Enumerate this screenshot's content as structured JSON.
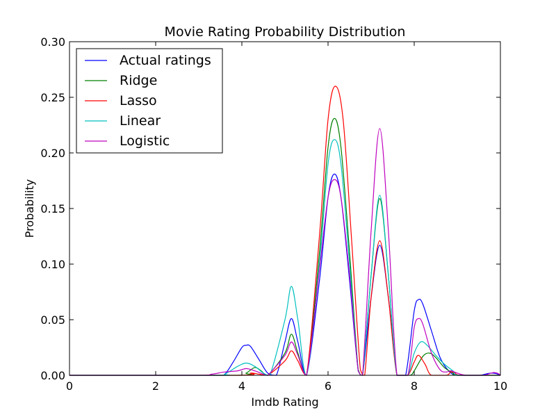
{
  "chart_data": {
    "type": "line",
    "title": "Movie Rating Probability Distribution",
    "xlabel": "Imdb Rating",
    "ylabel": "Probability",
    "xlim": [
      0,
      10
    ],
    "ylim": [
      0,
      0.3
    ],
    "x_ticks": [
      "0",
      "2",
      "4",
      "6",
      "8",
      "10"
    ],
    "y_ticks": [
      "0.00",
      "0.05",
      "0.10",
      "0.15",
      "0.20",
      "0.25",
      "0.30"
    ],
    "grid": false,
    "legend_position": "top-left",
    "series": [
      {
        "name": "Actual ratings",
        "color": "#0000ff",
        "points": [
          [
            0,
            0
          ],
          [
            3.4,
            0
          ],
          [
            3.6,
            0.001
          ],
          [
            3.8,
            0.012
          ],
          [
            4.0,
            0.025
          ],
          [
            4.1,
            0.027
          ],
          [
            4.2,
            0.026
          ],
          [
            4.4,
            0.014
          ],
          [
            4.6,
            0.002
          ],
          [
            4.8,
            0
          ],
          [
            5.0,
            0.03
          ],
          [
            5.15,
            0.051
          ],
          [
            5.3,
            0.03
          ],
          [
            5.5,
            0
          ],
          [
            5.8,
            0.085
          ],
          [
            6.0,
            0.16
          ],
          [
            6.15,
            0.181
          ],
          [
            6.3,
            0.16
          ],
          [
            6.5,
            0.085
          ],
          [
            6.7,
            0.004
          ],
          [
            6.8,
            0
          ],
          [
            7.0,
            0.07
          ],
          [
            7.2,
            0.117
          ],
          [
            7.4,
            0.07
          ],
          [
            7.6,
            0
          ],
          [
            7.8,
            0
          ],
          [
            8.0,
            0.058
          ],
          [
            8.1,
            0.068
          ],
          [
            8.2,
            0.064
          ],
          [
            8.4,
            0.04
          ],
          [
            8.6,
            0.016
          ],
          [
            8.8,
            0.004
          ],
          [
            9.0,
            0
          ],
          [
            9.5,
            0
          ],
          [
            9.7,
            0.0015
          ],
          [
            9.8,
            0.002
          ],
          [
            9.9,
            0.0015
          ],
          [
            10,
            0
          ]
        ]
      },
      {
        "name": "Ridge",
        "color": "#008000",
        "points": [
          [
            0,
            0
          ],
          [
            3.9,
            0
          ],
          [
            4.1,
            0.002
          ],
          [
            4.3,
            0.007
          ],
          [
            4.45,
            0.004
          ],
          [
            4.6,
            0
          ],
          [
            5.0,
            0.02
          ],
          [
            5.15,
            0.037
          ],
          [
            5.3,
            0.02
          ],
          [
            5.5,
            0
          ],
          [
            5.8,
            0.11
          ],
          [
            6.0,
            0.205
          ],
          [
            6.15,
            0.231
          ],
          [
            6.3,
            0.205
          ],
          [
            6.5,
            0.11
          ],
          [
            6.7,
            0.005
          ],
          [
            6.8,
            0
          ],
          [
            7.0,
            0.09
          ],
          [
            7.2,
            0.159
          ],
          [
            7.4,
            0.09
          ],
          [
            7.6,
            0
          ],
          [
            7.9,
            0
          ],
          [
            8.0,
            0.004
          ],
          [
            8.2,
            0.017
          ],
          [
            8.35,
            0.02
          ],
          [
            8.5,
            0.016
          ],
          [
            8.7,
            0.007
          ],
          [
            8.9,
            0.002
          ],
          [
            9.0,
            0
          ],
          [
            10,
            0
          ]
        ]
      },
      {
        "name": "Lasso",
        "color": "#ff0000",
        "points": [
          [
            0,
            0
          ],
          [
            3.9,
            0
          ],
          [
            4.2,
            0.002
          ],
          [
            4.4,
            0.001
          ],
          [
            4.6,
            0
          ],
          [
            5.0,
            0.013
          ],
          [
            5.15,
            0.022
          ],
          [
            5.3,
            0.013
          ],
          [
            5.5,
            0
          ],
          [
            5.8,
            0.125
          ],
          [
            6.0,
            0.23
          ],
          [
            6.17,
            0.26
          ],
          [
            6.35,
            0.23
          ],
          [
            6.55,
            0.12
          ],
          [
            6.75,
            0.005
          ],
          [
            6.85,
            0
          ],
          [
            7.0,
            0.07
          ],
          [
            7.2,
            0.121
          ],
          [
            7.4,
            0.07
          ],
          [
            7.6,
            0
          ],
          [
            7.85,
            0
          ],
          [
            8.0,
            0.012
          ],
          [
            8.1,
            0.018
          ],
          [
            8.25,
            0.01
          ],
          [
            8.4,
            0
          ],
          [
            8.75,
            0
          ],
          [
            8.85,
            0.003
          ],
          [
            8.95,
            0.002
          ],
          [
            9.1,
            0
          ],
          [
            10,
            0
          ]
        ]
      },
      {
        "name": "Linear",
        "color": "#00bfbf",
        "points": [
          [
            0,
            0
          ],
          [
            3.4,
            0
          ],
          [
            3.6,
            0.001
          ],
          [
            3.9,
            0.008
          ],
          [
            4.1,
            0.011
          ],
          [
            4.3,
            0.008
          ],
          [
            4.5,
            0.002
          ],
          [
            4.65,
            0
          ],
          [
            5.0,
            0.05
          ],
          [
            5.15,
            0.08
          ],
          [
            5.3,
            0.05
          ],
          [
            5.5,
            0
          ],
          [
            5.8,
            0.1
          ],
          [
            6.0,
            0.19
          ],
          [
            6.15,
            0.212
          ],
          [
            6.3,
            0.19
          ],
          [
            6.5,
            0.1
          ],
          [
            6.7,
            0.004
          ],
          [
            6.8,
            0
          ],
          [
            7.0,
            0.09
          ],
          [
            7.2,
            0.162
          ],
          [
            7.4,
            0.09
          ],
          [
            7.6,
            0
          ],
          [
            7.85,
            0
          ],
          [
            8.0,
            0.02
          ],
          [
            8.15,
            0.03
          ],
          [
            8.3,
            0.027
          ],
          [
            8.5,
            0.018
          ],
          [
            8.7,
            0.01
          ],
          [
            8.9,
            0.004
          ],
          [
            9.05,
            0
          ],
          [
            10,
            0
          ]
        ]
      },
      {
        "name": "Logistic",
        "color": "#bf00bf",
        "points": [
          [
            0,
            0
          ],
          [
            2.9,
            0
          ],
          [
            3.3,
            0.001
          ],
          [
            3.6,
            0.003
          ],
          [
            3.9,
            0.004
          ],
          [
            4.1,
            0.006
          ],
          [
            4.3,
            0.004
          ],
          [
            4.5,
            0.001
          ],
          [
            4.6,
            0
          ],
          [
            5.0,
            0.018
          ],
          [
            5.15,
            0.03
          ],
          [
            5.3,
            0.018
          ],
          [
            5.5,
            0
          ],
          [
            5.8,
            0.095
          ],
          [
            6.0,
            0.16
          ],
          [
            6.15,
            0.176
          ],
          [
            6.3,
            0.16
          ],
          [
            6.5,
            0.09
          ],
          [
            6.7,
            0.004
          ],
          [
            6.8,
            0
          ],
          [
            7.0,
            0.13
          ],
          [
            7.2,
            0.222
          ],
          [
            7.4,
            0.13
          ],
          [
            7.6,
            0
          ],
          [
            7.85,
            0
          ],
          [
            8.0,
            0.043
          ],
          [
            8.1,
            0.051
          ],
          [
            8.2,
            0.046
          ],
          [
            8.4,
            0.02
          ],
          [
            8.6,
            0.005
          ],
          [
            8.75,
            0.003
          ],
          [
            8.85,
            0.004
          ],
          [
            9.0,
            0.002
          ],
          [
            9.2,
            0
          ],
          [
            9.6,
            0
          ],
          [
            9.75,
            0.0015
          ],
          [
            9.85,
            0.0025
          ],
          [
            9.95,
            0.0015
          ],
          [
            10,
            0
          ]
        ]
      }
    ]
  }
}
